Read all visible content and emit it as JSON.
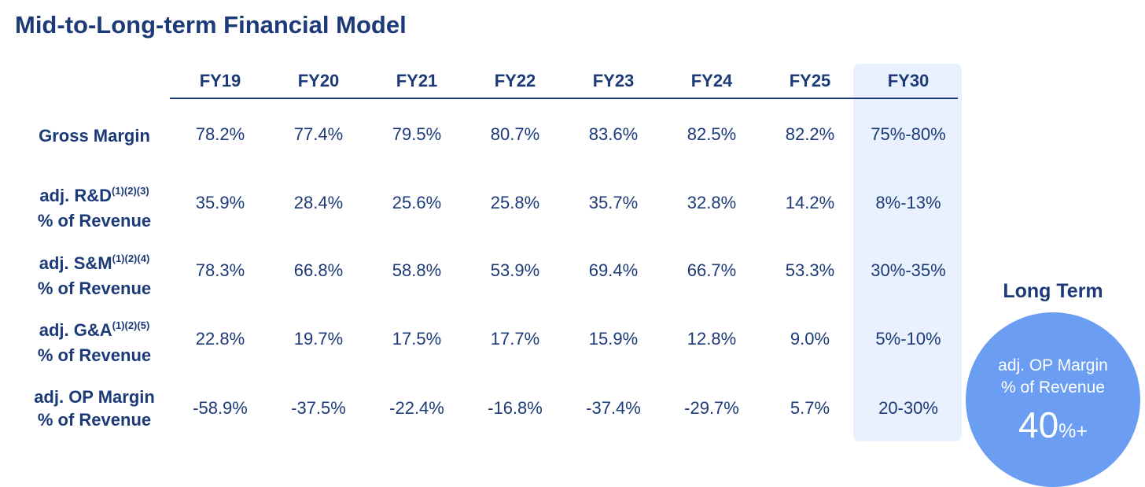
{
  "title": "Mid-to-Long-term Financial Model",
  "columns": [
    "FY19",
    "FY20",
    "FY21",
    "FY22",
    "FY23",
    "FY24",
    "FY25",
    "FY30"
  ],
  "rows": [
    {
      "label": "Gross Margin",
      "label_line2": "",
      "sup": "",
      "values": [
        "78.2%",
        "77.4%",
        "79.5%",
        "80.7%",
        "83.6%",
        "82.5%",
        "82.2%",
        "75%-80%"
      ]
    },
    {
      "label": "adj. R&D",
      "label_line2": "% of Revenue",
      "sup": "(1)(2)(3)",
      "values": [
        "35.9%",
        "28.4%",
        "25.6%",
        "25.8%",
        "35.7%",
        "32.8%",
        "14.2%",
        "8%-13%"
      ]
    },
    {
      "label": "adj. S&M",
      "label_line2": "% of Revenue",
      "sup": "(1)(2)(4)",
      "values": [
        "78.3%",
        "66.8%",
        "58.8%",
        "53.9%",
        "69.4%",
        "66.7%",
        "53.3%",
        "30%-35%"
      ]
    },
    {
      "label": "adj. G&A",
      "label_line2": "% of Revenue",
      "sup": "(1)(2)(5)",
      "values": [
        "22.8%",
        "19.7%",
        "17.5%",
        "17.7%",
        "15.9%",
        "12.8%",
        "9.0%",
        "5%-10%"
      ]
    },
    {
      "label": "adj. OP Margin",
      "label_line2": "% of Revenue",
      "sup": "",
      "values": [
        "-58.9%",
        "-37.5%",
        "-22.4%",
        "-16.8%",
        "-37.4%",
        "-29.7%",
        "5.7%",
        "20-30%"
      ]
    }
  ],
  "long_term": {
    "title": "Long Term",
    "line1": "adj. OP Margin",
    "line2": "% of Revenue",
    "value": "40",
    "suffix": "%+"
  },
  "colors": {
    "text": "#1c3a78",
    "highlight_bg": "#e8f1fd",
    "circle": "#6b9ef2"
  }
}
